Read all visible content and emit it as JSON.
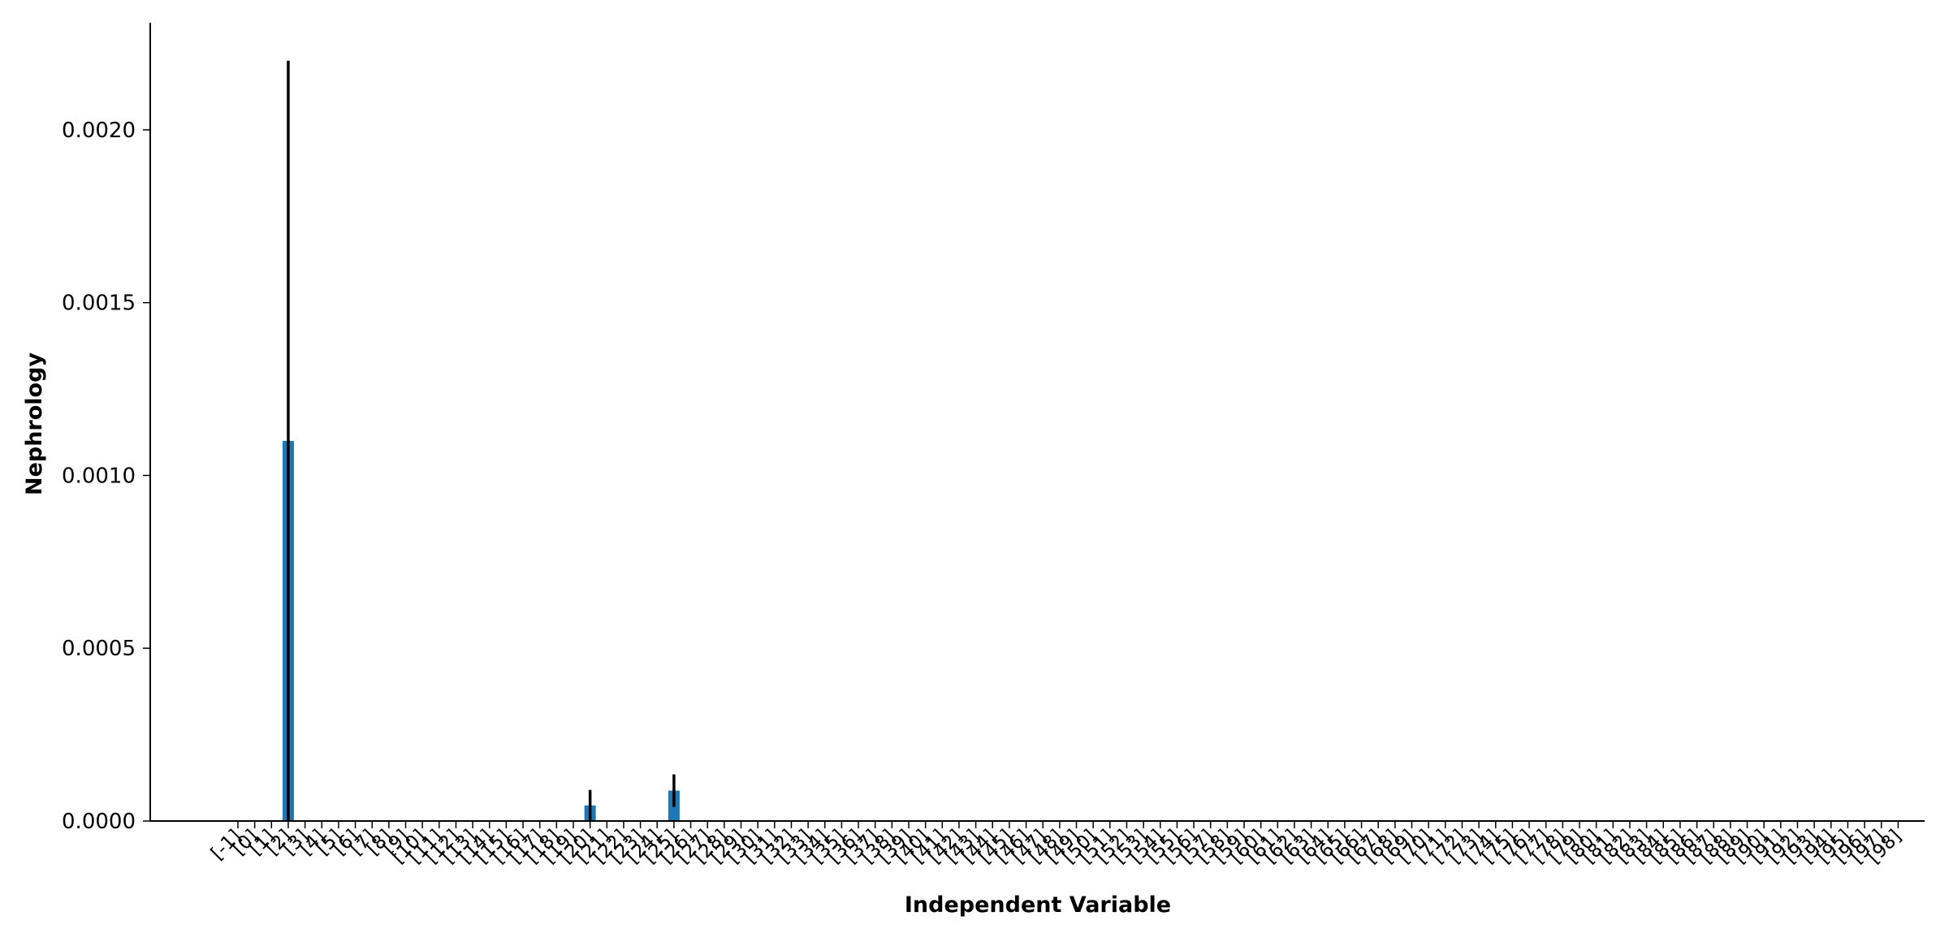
{
  "chart_data": {
    "type": "bar",
    "title": "",
    "xlabel": "Independent Variable",
    "ylabel": "Nephrology",
    "ylim": [
      0,
      0.00231
    ],
    "yticks": [
      "0.0000",
      "0.0005",
      "0.0010",
      "0.0015",
      "0.0020"
    ],
    "ytick_values": [
      0,
      0.0005,
      0.001,
      0.0015,
      0.002
    ],
    "grid": false,
    "legend": "none",
    "bar_color": "#1f77b4",
    "errorbar_color": "#000000",
    "categories": [
      "[-1]",
      "[0]",
      "[1]",
      "[2]",
      "[3]",
      "[4]",
      "[5]",
      "[6]",
      "[7]",
      "[8]",
      "[9]",
      "[10]",
      "[11]",
      "[12]",
      "[13]",
      "[14]",
      "[15]",
      "[16]",
      "[17]",
      "[18]",
      "[19]",
      "[20]",
      "[21]",
      "[22]",
      "[23]",
      "[24]",
      "[25]",
      "[26]",
      "[27]",
      "[28]",
      "[29]",
      "[30]",
      "[31]",
      "[32]",
      "[33]",
      "[34]",
      "[35]",
      "[36]",
      "[37]",
      "[38]",
      "[39]",
      "[40]",
      "[41]",
      "[42]",
      "[43]",
      "[44]",
      "[45]",
      "[46]",
      "[47]",
      "[48]",
      "[49]",
      "[50]",
      "[51]",
      "[52]",
      "[53]",
      "[54]",
      "[55]",
      "[56]",
      "[57]",
      "[58]",
      "[59]",
      "[60]",
      "[61]",
      "[62]",
      "[63]",
      "[64]",
      "[65]",
      "[66]",
      "[67]",
      "[68]",
      "[69]",
      "[70]",
      "[71]",
      "[72]",
      "[73]",
      "[74]",
      "[75]",
      "[76]",
      "[77]",
      "[78]",
      "[79]",
      "[80]",
      "[81]",
      "[82]",
      "[83]",
      "[84]",
      "[85]",
      "[86]",
      "[87]",
      "[88]",
      "[89]",
      "[90]",
      "[91]",
      "[92]",
      "[93]",
      "[94]",
      "[95]",
      "[96]",
      "[97]",
      "[98]"
    ],
    "values": [
      0,
      0,
      0,
      0.0011,
      0,
      0,
      0,
      0,
      0,
      0,
      0,
      0,
      0,
      0,
      0,
      0,
      0,
      0,
      0,
      0,
      0,
      4.5e-05,
      0,
      0,
      0,
      0,
      8.8e-05,
      0,
      0,
      0,
      0,
      0,
      0,
      0,
      0,
      0,
      0,
      0,
      0,
      0,
      0,
      0,
      0,
      0,
      0,
      0,
      0,
      0,
      0,
      0,
      0,
      0,
      0,
      0,
      0,
      0,
      0,
      0,
      0,
      0,
      0,
      0,
      0,
      0,
      0,
      0,
      0,
      0,
      0,
      0,
      0,
      0,
      0,
      0,
      0,
      0,
      0,
      0,
      0,
      0,
      0,
      0,
      0,
      0,
      0,
      0,
      0,
      0,
      0,
      0,
      0,
      0,
      0,
      0,
      0,
      0,
      0,
      0,
      0,
      0
    ],
    "errors": [
      0,
      0,
      0,
      0.0011,
      0,
      0,
      0,
      0,
      0,
      0,
      0,
      0,
      0,
      0,
      0,
      0,
      0,
      0,
      0,
      0,
      0,
      4.5e-05,
      0,
      0,
      0,
      0,
      4.7e-05,
      0,
      0,
      0,
      0,
      0,
      0,
      0,
      0,
      0,
      0,
      0,
      0,
      0,
      0,
      0,
      0,
      0,
      0,
      0,
      0,
      0,
      0,
      0,
      0,
      0,
      0,
      0,
      0,
      0,
      0,
      0,
      0,
      0,
      0,
      0,
      0,
      0,
      0,
      0,
      0,
      0,
      0,
      0,
      0,
      0,
      0,
      0,
      0,
      0,
      0,
      0,
      0,
      0,
      0,
      0,
      0,
      0,
      0,
      0,
      0,
      0,
      0,
      0,
      0,
      0,
      0,
      0,
      0,
      0,
      0,
      0,
      0,
      0
    ]
  }
}
